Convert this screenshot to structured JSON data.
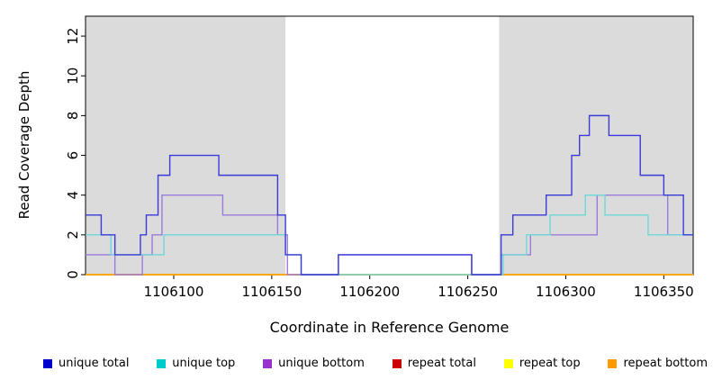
{
  "chart_data": {
    "type": "line",
    "subtype": "step",
    "title": "",
    "xlabel": "Coordinate in Reference Genome",
    "ylabel": "Read Coverage Depth",
    "xlim": [
      1106055,
      1106365
    ],
    "ylim": [
      0,
      13
    ],
    "x_ticks": [
      1106100,
      1106150,
      1106200,
      1106250,
      1106300,
      1106350
    ],
    "y_ticks": [
      0,
      2,
      4,
      6,
      8,
      10,
      12
    ],
    "grid": false,
    "legend_position": "bottom",
    "background": "#FFFFFF",
    "shade_color": "#DBDBDB",
    "shaded_regions": [
      {
        "from": 1106055,
        "to": 1106157
      },
      {
        "from": 1106266,
        "to": 1106365
      }
    ],
    "series": [
      {
        "id": "unique_total",
        "label": "unique total",
        "color": "#3A3AD9",
        "legend_color": "#0000CC",
        "z": 6,
        "steps": [
          [
            1106055,
            3
          ],
          [
            1106063,
            2
          ],
          [
            1106070,
            1
          ],
          [
            1106083,
            2
          ],
          [
            1106086,
            3
          ],
          [
            1106092,
            5
          ],
          [
            1106098,
            6
          ],
          [
            1106123,
            5
          ],
          [
            1106153,
            3
          ],
          [
            1106157,
            1
          ],
          [
            1106165,
            0
          ],
          [
            1106184,
            1
          ],
          [
            1106252,
            0
          ],
          [
            1106267,
            2
          ],
          [
            1106273,
            3
          ],
          [
            1106290,
            4
          ],
          [
            1106303,
            6
          ],
          [
            1106307,
            7
          ],
          [
            1106312,
            8
          ],
          [
            1106322,
            7
          ],
          [
            1106338,
            5
          ],
          [
            1106350,
            4
          ],
          [
            1106360,
            2
          ]
        ]
      },
      {
        "id": "unique_top",
        "label": "unique top",
        "color": "#6FD8D8",
        "legend_color": "#00CCCC",
        "z": 5,
        "steps": [
          [
            1106055,
            2
          ],
          [
            1106068,
            1
          ],
          [
            1106095,
            2
          ],
          [
            1106157,
            1
          ],
          [
            1106165,
            0
          ],
          [
            1106268,
            1
          ],
          [
            1106280,
            2
          ],
          [
            1106292,
            3
          ],
          [
            1106310,
            4
          ],
          [
            1106320,
            3
          ],
          [
            1106342,
            2
          ]
        ]
      },
      {
        "id": "unique_bottom",
        "label": "unique bottom",
        "color": "#9B7BDB",
        "legend_color": "#9933CC",
        "z": 4,
        "steps": [
          [
            1106055,
            1
          ],
          [
            1106070,
            0
          ],
          [
            1106084,
            1
          ],
          [
            1106089,
            2
          ],
          [
            1106094,
            4
          ],
          [
            1106125,
            3
          ],
          [
            1106153,
            2
          ],
          [
            1106158,
            0
          ],
          [
            1106184,
            1
          ],
          [
            1106252,
            0
          ],
          [
            1106267,
            1
          ],
          [
            1106282,
            2
          ],
          [
            1106316,
            4
          ],
          [
            1106352,
            2
          ]
        ]
      },
      {
        "id": "repeat_total",
        "label": "repeat total",
        "color": "#CC0000",
        "legend_color": "#CC0000",
        "z": 1,
        "steps": [
          [
            1106055,
            0
          ]
        ]
      },
      {
        "id": "repeat_top",
        "label": "repeat top",
        "color": "#EEEE00",
        "legend_color": "#FFFF00",
        "z": 2,
        "steps": [
          [
            1106055,
            0
          ]
        ]
      },
      {
        "id": "repeat_bottom",
        "label": "repeat bottom",
        "color": "#FFA500",
        "legend_color": "#FF9900",
        "z": 3,
        "steps": [
          [
            1106055,
            0
          ]
        ]
      }
    ]
  }
}
